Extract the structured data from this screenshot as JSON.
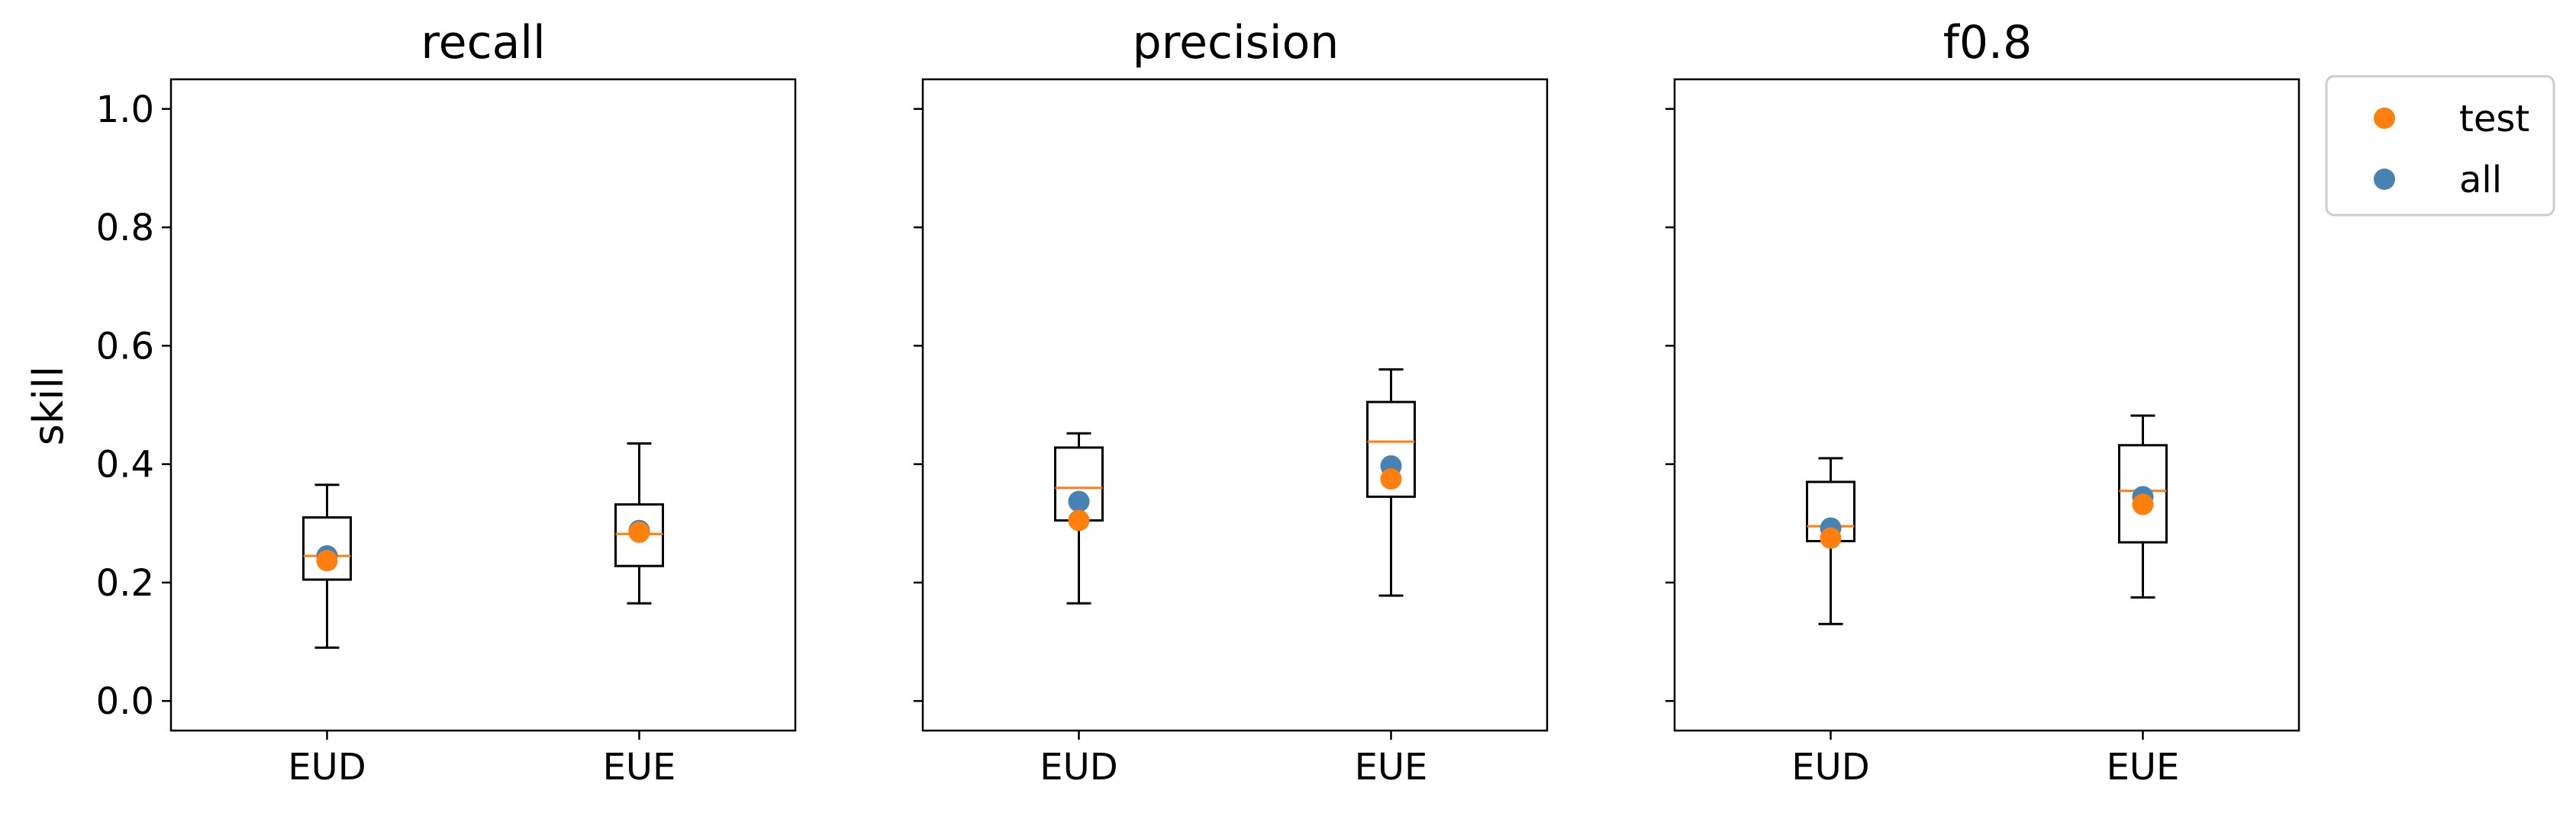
{
  "chart_data": {
    "type": "box",
    "ylabel": "skill",
    "ylim": [
      -0.05,
      1.05
    ],
    "yticks": [
      0.0,
      0.2,
      0.4,
      0.6,
      0.8,
      1.0
    ],
    "ytick_labels": [
      "0.0",
      "0.2",
      "0.4",
      "0.6",
      "0.8",
      "1.0"
    ],
    "categories": [
      "EUD",
      "EUE"
    ],
    "legend": {
      "placement": "outside top-right",
      "entries": [
        {
          "label": "test",
          "color": "#ff7f0e"
        },
        {
          "label": "all",
          "color": "#4682b4"
        }
      ]
    },
    "colors": {
      "median": "#ff7f0e",
      "test": "#ff7f0e",
      "all": "#4682b4",
      "box": "#000000"
    },
    "panels": [
      {
        "title": "recall",
        "boxes": [
          {
            "category": "EUD",
            "whisker_low": 0.09,
            "q1": 0.205,
            "median": 0.245,
            "q3": 0.31,
            "whisker_high": 0.365,
            "test": 0.237,
            "all": 0.245
          },
          {
            "category": "EUE",
            "whisker_low": 0.165,
            "q1": 0.228,
            "median": 0.282,
            "q3": 0.332,
            "whisker_high": 0.435,
            "test": 0.285,
            "all": 0.288
          }
        ]
      },
      {
        "title": "precision",
        "boxes": [
          {
            "category": "EUD",
            "whisker_low": 0.165,
            "q1": 0.305,
            "median": 0.36,
            "q3": 0.428,
            "whisker_high": 0.452,
            "test": 0.305,
            "all": 0.337
          },
          {
            "category": "EUE",
            "whisker_low": 0.178,
            "q1": 0.345,
            "median": 0.438,
            "q3": 0.505,
            "whisker_high": 0.56,
            "test": 0.375,
            "all": 0.397
          }
        ]
      },
      {
        "title": "f0.8",
        "boxes": [
          {
            "category": "EUD",
            "whisker_low": 0.13,
            "q1": 0.27,
            "median": 0.295,
            "q3": 0.37,
            "whisker_high": 0.41,
            "test": 0.275,
            "all": 0.292
          },
          {
            "category": "EUE",
            "whisker_low": 0.175,
            "q1": 0.268,
            "median": 0.355,
            "q3": 0.432,
            "whisker_high": 0.482,
            "test": 0.332,
            "all": 0.345
          }
        ]
      }
    ]
  }
}
